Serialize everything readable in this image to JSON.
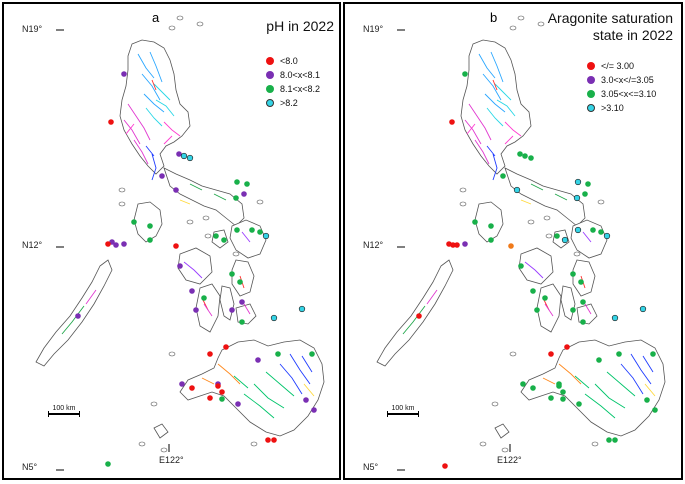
{
  "panels": [
    {
      "letter": "a",
      "title": "pH in 2022",
      "legend": [
        {
          "label": "<8.0",
          "color": "#ee1111"
        },
        {
          "label": "8.0<x<8.1",
          "color": "#7a2fb3"
        },
        {
          "label": "8.1<x<8.2",
          "color": "#18b04a"
        },
        {
          "label": ">8.2",
          "color": "#35d4e6"
        }
      ]
    },
    {
      "letter": "b",
      "title_line1": "Aragonite saturation",
      "title_line2": "state in 2022",
      "legend": [
        {
          "label": "</= 3.00",
          "color": "#ee1111"
        },
        {
          "label": "3.0<x</=3.05",
          "color": "#7a2fb3"
        },
        {
          "label": "3.05<x<=3.10",
          "color": "#18b04a"
        },
        {
          "label": ">3.10",
          "color": "#35d4e6"
        }
      ]
    }
  ],
  "axes": {
    "lat_top": "N19°",
    "lat_mid": "N12°",
    "lat_bottom": "N5°",
    "lon": "E122°"
  },
  "scale_label": "100 km"
}
